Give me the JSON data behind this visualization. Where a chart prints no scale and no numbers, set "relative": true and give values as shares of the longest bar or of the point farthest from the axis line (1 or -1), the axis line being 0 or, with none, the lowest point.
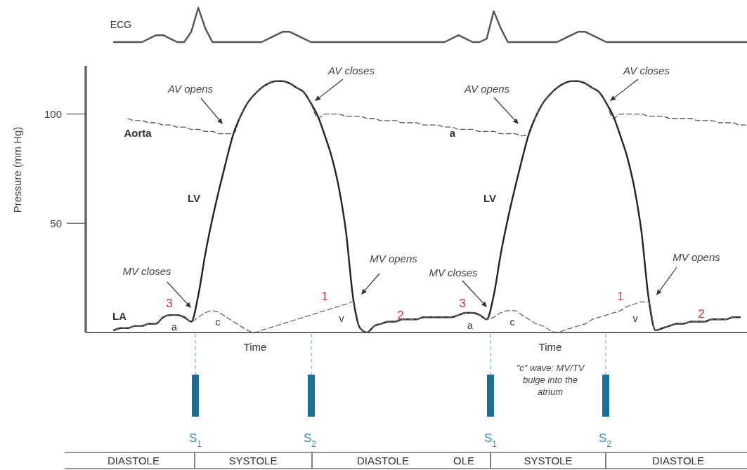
{
  "chart_data": [
    {
      "type": "line",
      "relative": true,
      "categories": [
        null,
        null,
        null,
        null,
        null,
        null,
        null,
        null,
        null,
        null,
        null,
        null,
        null,
        null,
        null,
        null,
        null,
        null,
        null,
        null,
        null,
        null,
        null,
        null,
        null,
        null,
        null,
        null,
        null,
        null,
        null,
        null,
        null,
        null,
        null,
        null,
        null,
        null,
        null,
        null,
        null,
        null,
        null,
        null,
        null,
        null,
        null,
        null,
        null,
        null,
        null,
        null,
        null,
        null,
        null,
        null,
        null,
        null,
        null,
        null,
        null,
        null,
        null,
        null,
        null,
        null,
        null,
        null,
        null,
        null,
        null,
        null,
        null,
        null,
        null,
        null,
        null,
        null,
        null,
        null,
        null,
        null,
        null,
        null,
        null,
        null,
        null,
        null,
        null,
        null,
        null,
        null,
        null,
        null,
        null
      ],
      "series": [
        {
          "name": "ECG",
          "color": "#555555",
          "values": [
            null,
            null,
            null,
            null,
            0,
            0,
            0,
            0,
            0,
            0.1,
            0.2,
            0.2,
            0.1,
            0,
            0,
            0.3,
            1,
            0.4,
            0,
            0,
            0,
            0,
            0,
            0,
            0,
            0,
            0.1,
            0.2,
            0.3,
            0.3,
            0.2,
            0.1,
            0,
            0,
            0,
            0,
            0,
            0,
            0,
            0,
            0,
            0,
            0,
            0,
            0,
            0,
            0,
            0,
            0,
            0,
            0,
            0,
            0.1,
            0.2,
            0.1,
            0,
            0,
            0.1,
            0.9,
            0.4,
            0,
            0,
            0,
            0,
            0,
            0,
            0,
            0,
            0.1,
            0.2,
            0.3,
            0.3,
            0.2,
            0.1,
            0,
            0,
            0,
            0,
            0,
            0,
            0,
            0,
            0,
            0,
            0,
            0,
            0,
            0,
            0,
            0,
            0,
            0,
            0,
            0,
            0
          ]
        }
      ]
    },
    {
      "type": "line",
      "xlabel": "Time",
      "ylabel": "Pressure (mm Hg)",
      "categories": [
        null,
        null,
        null,
        null,
        null,
        null,
        null,
        null,
        null,
        null,
        null,
        null,
        null,
        null,
        null,
        null,
        null,
        null,
        null,
        null,
        null,
        null,
        null,
        null,
        null,
        null,
        null,
        null,
        null,
        null,
        null,
        null,
        null,
        null,
        null,
        null,
        null,
        null,
        null,
        null,
        null,
        null,
        null,
        null,
        null,
        null,
        null,
        null,
        null,
        null,
        null,
        null,
        null,
        null,
        null,
        null,
        null,
        null,
        null,
        null,
        null,
        null,
        null,
        null,
        null,
        null,
        null,
        null,
        null,
        null,
        null,
        null,
        null,
        null,
        null,
        null,
        null,
        null,
        null,
        null,
        null,
        null,
        null,
        null,
        null,
        null,
        null,
        null,
        null,
        null,
        null,
        null,
        null,
        null,
        null
      ],
      "ylim": [
        0,
        122
      ],
      "yticks": [
        50,
        100
      ],
      "series": [
        {
          "name": "LV",
          "color": "#222222",
          "line_style": "solid",
          "values": [
            null,
            null,
            null,
            null,
            1,
            2,
            2,
            3,
            3,
            4,
            4,
            7,
            8,
            8,
            7,
            5,
            17,
            36,
            52,
            66,
            79,
            91,
            99,
            105,
            109,
            112,
            114,
            115,
            115,
            114,
            112,
            110,
            105,
            99,
            90,
            80,
            66,
            46,
            16,
            2,
            0,
            3,
            4,
            5,
            5,
            6,
            6,
            6,
            7,
            7,
            7,
            7,
            7,
            8,
            9,
            9,
            8,
            6,
            17,
            36,
            52,
            66,
            79,
            91,
            99,
            105,
            109,
            112,
            114,
            115,
            115,
            114,
            112,
            110,
            105,
            99,
            90,
            80,
            66,
            46,
            16,
            1,
            2,
            3,
            4,
            4,
            5,
            5,
            5,
            6,
            6,
            6,
            7,
            7,
            null
          ]
        },
        {
          "name": "Aorta",
          "color": "#555555",
          "line_style": "dashed",
          "values": [
            null,
            null,
            null,
            null,
            null,
            null,
            98,
            97,
            97,
            96,
            96,
            95,
            95,
            94,
            94,
            93,
            93,
            92,
            92,
            91,
            91,
            91,
            99,
            105,
            109,
            112,
            114,
            115,
            115,
            114,
            112,
            110,
            105,
            98,
            100,
            100,
            100,
            99,
            99,
            99,
            98,
            98,
            97,
            97,
            97,
            96,
            96,
            96,
            95,
            95,
            95,
            94,
            94,
            93,
            93,
            93,
            92,
            92,
            92,
            91,
            91,
            91,
            90,
            91,
            99,
            105,
            109,
            112,
            114,
            115,
            115,
            114,
            112,
            110,
            105,
            98,
            100,
            100,
            100,
            100,
            99,
            99,
            99,
            98,
            98,
            98,
            98,
            97,
            97,
            97,
            96,
            96,
            96,
            95,
            95
          ]
        },
        {
          "name": "LA",
          "color": "#666666",
          "line_style": "dashed",
          "values": [
            null,
            null,
            null,
            null,
            1,
            2,
            2,
            3,
            3,
            4,
            4,
            7,
            8,
            8,
            7,
            5,
            7,
            9,
            10,
            9,
            7,
            5,
            3,
            1,
            0,
            1,
            2,
            3,
            4,
            5,
            6,
            7,
            8,
            9,
            10,
            11,
            12,
            13,
            14,
            2,
            0,
            3,
            4,
            5,
            5,
            6,
            6,
            6,
            7,
            7,
            7,
            7,
            7,
            8,
            9,
            9,
            8,
            6,
            7,
            9,
            10,
            10,
            8,
            6,
            4,
            3,
            1,
            0,
            1,
            2,
            3,
            4,
            6,
            7,
            8,
            9,
            10,
            12,
            13,
            14,
            14,
            1,
            2,
            3,
            4,
            4,
            5,
            5,
            5,
            6,
            6,
            6,
            7,
            7,
            null
          ]
        }
      ],
      "annotations": [
        "AV opens",
        "AV closes",
        "AV opens",
        "AV closes",
        "MV closes",
        "MV opens",
        "MV closes",
        "MV opens",
        "3",
        "1",
        "2",
        "3",
        "1",
        "2",
        "a",
        "c",
        "v",
        "a",
        "c",
        "v",
        "a",
        "\"c\" wave: MV/TV bulge into the atrium",
        "S$_{1}$",
        "S$_{2}$",
        "S$_{1}$",
        "S$_{2}$",
        "DIASTOLE",
        "SYSTOLE",
        "DIASTOLE",
        "OLE",
        "SYSTOLE",
        "DIASTOLE"
      ]
    }
  ]
}
